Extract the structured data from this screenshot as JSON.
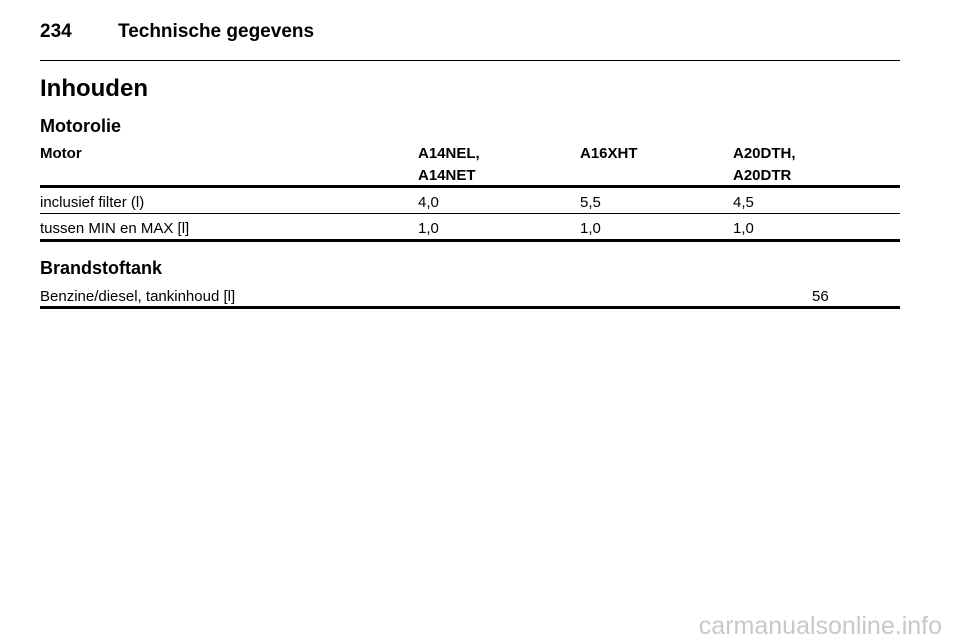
{
  "header": {
    "page_number": "234",
    "title": "Technische gegevens"
  },
  "section_title": "Inhouden",
  "subsections": [
    {
      "title": "Motorolie",
      "table": {
        "columns": [
          "Motor",
          "A14NEL,\nA14NET",
          "A16XHT",
          "A20DTH,\nA20DTR"
        ],
        "rows": [
          [
            "inclusief filter (l)",
            "4,0",
            "5,5",
            "4,5"
          ],
          [
            "tussen MIN en MAX [l]",
            "1,0",
            "1,0",
            "1,0"
          ]
        ]
      }
    },
    {
      "title": "Brandstoftank",
      "table": {
        "rows": [
          [
            "Benzine/diesel, tankinhoud [l]",
            "56"
          ]
        ]
      }
    }
  ],
  "watermark": "carmanualsonline.info"
}
